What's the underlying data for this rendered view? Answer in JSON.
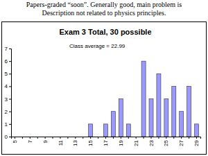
{
  "note": [
    "Papers-graded “soon”.  Generally good, main problem is",
    "Description not related to physics principles."
  ],
  "chart_data": {
    "type": "bar",
    "title": "Exam 3 Total, 30 possible",
    "annotation": "Class average = 22.99",
    "categories": [
      "5",
      null,
      "7",
      null,
      "9",
      null,
      "11",
      null,
      "13",
      null,
      "15",
      null,
      "17",
      null,
      "19",
      null,
      "21",
      null,
      "23",
      null,
      "25",
      null,
      "27",
      null,
      "29"
    ],
    "values": [
      0,
      0,
      0,
      0,
      0,
      0,
      0,
      0,
      0,
      0,
      1,
      0,
      1,
      2,
      3,
      1,
      0,
      6,
      3,
      5,
      3,
      4,
      2,
      4,
      1
    ],
    "color": "#9999ff",
    "ylim": [
      0,
      7
    ],
    "yticks": [
      0,
      1,
      2,
      3,
      4,
      5,
      6,
      7
    ],
    "grid": false
  }
}
